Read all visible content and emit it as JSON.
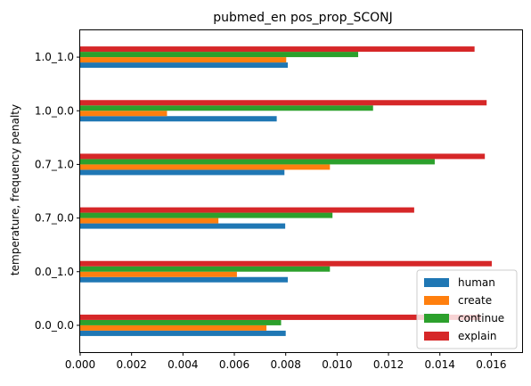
{
  "chart_data": {
    "type": "bar",
    "orientation": "horizontal",
    "title": "pubmed_en pos_prop_SCONJ",
    "xlabel": "",
    "ylabel": "temperature, frequency penalty",
    "categories": [
      "0.0_0.0",
      "0.0_1.0",
      "0.7_0.0",
      "0.7_1.0",
      "1.0_0.0",
      "1.0_1.0"
    ],
    "series": [
      {
        "name": "human",
        "color": "#1f77b4",
        "values": [
          0.008,
          0.00808,
          0.00798,
          0.00795,
          0.00765,
          0.00808
        ]
      },
      {
        "name": "create",
        "color": "#ff7f0e",
        "values": [
          0.00725,
          0.0061,
          0.00538,
          0.00972,
          0.00338,
          0.00802
        ]
      },
      {
        "name": "continue",
        "color": "#2ca02c",
        "values": [
          0.00782,
          0.00972,
          0.00982,
          0.0138,
          0.0114,
          0.01082
        ]
      },
      {
        "name": "explain",
        "color": "#d62728",
        "values": [
          0.0156,
          0.01602,
          0.013,
          0.01575,
          0.01582,
          0.01535
        ]
      }
    ],
    "xlim": [
      0,
      0.0172
    ],
    "xticks": [
      "0.000",
      "0.002",
      "0.004",
      "0.006",
      "0.008",
      "0.010",
      "0.012",
      "0.014",
      "0.016"
    ],
    "grid": false,
    "legend_position": "lower-right"
  }
}
